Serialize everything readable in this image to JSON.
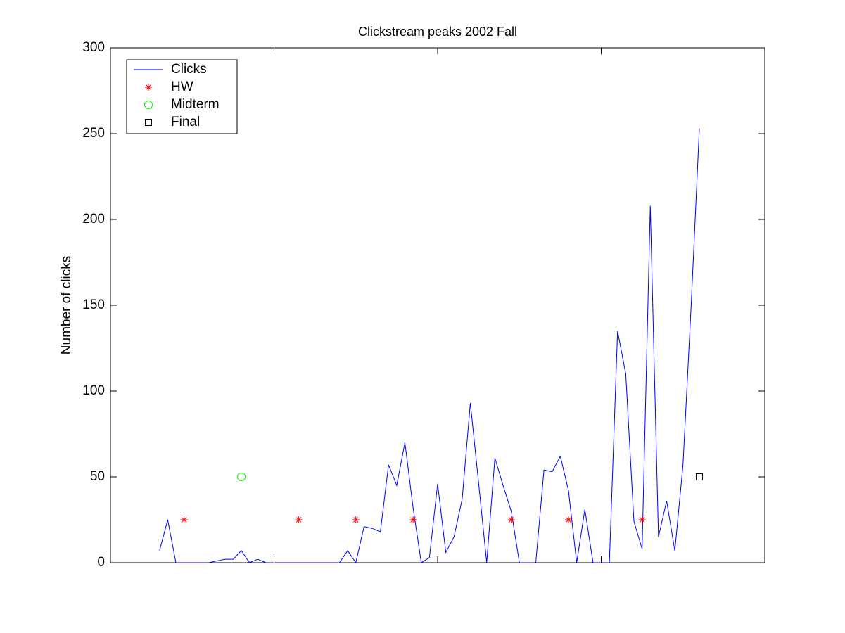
{
  "chart_data": {
    "type": "line",
    "title": "Clickstream peaks 2002 Fall",
    "ylabel": "Number of clicks",
    "xlim": [
      0,
      80
    ],
    "xticks": [
      0,
      20,
      40,
      60,
      80
    ],
    "ylim": [
      0,
      300
    ],
    "yticks": [
      0,
      50,
      100,
      150,
      200,
      250,
      300
    ],
    "grid": false,
    "legend": "top-left",
    "series": [
      {
        "name": "Clicks",
        "color": "#0000ff",
        "marker": "line",
        "x": [
          6,
          7,
          8,
          9,
          10,
          11,
          12,
          13,
          14,
          15,
          16,
          17,
          18,
          19,
          20,
          21,
          22,
          23,
          24,
          25,
          26,
          27,
          28,
          29,
          30,
          31,
          32,
          33,
          34,
          35,
          36,
          37,
          38,
          39,
          40,
          41,
          42,
          43,
          44,
          45,
          46,
          47,
          48,
          49,
          50,
          51,
          52,
          53,
          54,
          55,
          56,
          57,
          58,
          59,
          60,
          61,
          62,
          63,
          64,
          65,
          66,
          67,
          68,
          69,
          70,
          71,
          72
        ],
        "values": [
          7,
          25,
          0,
          0,
          0,
          0,
          0,
          1,
          2,
          2,
          7,
          0,
          2,
          0,
          0,
          0,
          0,
          0,
          0,
          0,
          0,
          0,
          0,
          7,
          0,
          21,
          20,
          18,
          57,
          45,
          70,
          32,
          0,
          3,
          46,
          6,
          15,
          37,
          93,
          47,
          0,
          61,
          45,
          30,
          0,
          0,
          0,
          54,
          53,
          62,
          42,
          0,
          31,
          0,
          0,
          0,
          135,
          110,
          24,
          8,
          208,
          15,
          36,
          7,
          57,
          150,
          253
        ]
      },
      {
        "name": "HW",
        "color": "#ff0000",
        "marker": "star",
        "x": [
          9,
          23,
          30,
          37,
          49,
          56,
          65
        ],
        "values": [
          25,
          25,
          25,
          25,
          25,
          25,
          25
        ]
      },
      {
        "name": "Midterm",
        "color": "#00ff00",
        "marker": "circle",
        "x": [
          16
        ],
        "values": [
          50
        ]
      },
      {
        "name": "Final",
        "color": "#000000",
        "marker": "square",
        "x": [
          72
        ],
        "values": [
          50
        ]
      }
    ]
  }
}
